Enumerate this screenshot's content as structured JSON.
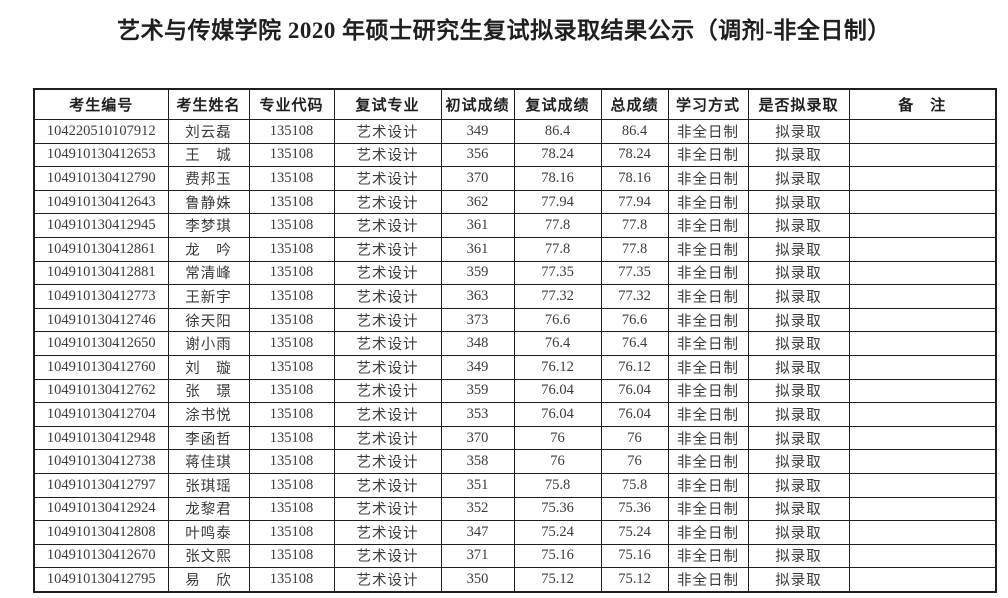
{
  "page": {
    "title": "艺术与传媒学院 2020 年硕士研究生复试拟录取结果公示（调剂-非全日制）"
  },
  "table": {
    "columns": [
      {
        "key": "candidate_id",
        "label": "考生编号"
      },
      {
        "key": "name",
        "label": "考生姓名"
      },
      {
        "key": "major_code",
        "label": "专业代码"
      },
      {
        "key": "retest_major",
        "label": "复试专业"
      },
      {
        "key": "initial_score",
        "label": "初试成绩"
      },
      {
        "key": "retest_score",
        "label": "复试成绩"
      },
      {
        "key": "total_score",
        "label": "总成绩"
      },
      {
        "key": "study_mode",
        "label": "学习方式"
      },
      {
        "key": "admission_status",
        "label": "是否拟录取"
      },
      {
        "key": "remark",
        "label": "备　注"
      }
    ],
    "rows": [
      {
        "candidate_id": "104220510107912",
        "name": "刘云磊",
        "major_code": "135108",
        "retest_major": "艺术设计",
        "initial_score": "349",
        "retest_score": "86.4",
        "total_score": "86.4",
        "study_mode": "非全日制",
        "admission_status": "拟录取",
        "remark": ""
      },
      {
        "candidate_id": "104910130412653",
        "name": "王　城",
        "major_code": "135108",
        "retest_major": "艺术设计",
        "initial_score": "356",
        "retest_score": "78.24",
        "total_score": "78.24",
        "study_mode": "非全日制",
        "admission_status": "拟录取",
        "remark": ""
      },
      {
        "candidate_id": "104910130412790",
        "name": "费邦玉",
        "major_code": "135108",
        "retest_major": "艺术设计",
        "initial_score": "370",
        "retest_score": "78.16",
        "total_score": "78.16",
        "study_mode": "非全日制",
        "admission_status": "拟录取",
        "remark": ""
      },
      {
        "candidate_id": "104910130412643",
        "name": "鲁静姝",
        "major_code": "135108",
        "retest_major": "艺术设计",
        "initial_score": "362",
        "retest_score": "77.94",
        "total_score": "77.94",
        "study_mode": "非全日制",
        "admission_status": "拟录取",
        "remark": ""
      },
      {
        "candidate_id": "104910130412945",
        "name": "李梦琪",
        "major_code": "135108",
        "retest_major": "艺术设计",
        "initial_score": "361",
        "retest_score": "77.8",
        "total_score": "77.8",
        "study_mode": "非全日制",
        "admission_status": "拟录取",
        "remark": ""
      },
      {
        "candidate_id": "104910130412861",
        "name": "龙　吟",
        "major_code": "135108",
        "retest_major": "艺术设计",
        "initial_score": "361",
        "retest_score": "77.8",
        "total_score": "77.8",
        "study_mode": "非全日制",
        "admission_status": "拟录取",
        "remark": ""
      },
      {
        "candidate_id": "104910130412881",
        "name": "常清峰",
        "major_code": "135108",
        "retest_major": "艺术设计",
        "initial_score": "359",
        "retest_score": "77.35",
        "total_score": "77.35",
        "study_mode": "非全日制",
        "admission_status": "拟录取",
        "remark": ""
      },
      {
        "candidate_id": "104910130412773",
        "name": "王新宇",
        "major_code": "135108",
        "retest_major": "艺术设计",
        "initial_score": "363",
        "retest_score": "77.32",
        "total_score": "77.32",
        "study_mode": "非全日制",
        "admission_status": "拟录取",
        "remark": ""
      },
      {
        "candidate_id": "104910130412746",
        "name": "徐天阳",
        "major_code": "135108",
        "retest_major": "艺术设计",
        "initial_score": "373",
        "retest_score": "76.6",
        "total_score": "76.6",
        "study_mode": "非全日制",
        "admission_status": "拟录取",
        "remark": ""
      },
      {
        "candidate_id": "104910130412650",
        "name": "谢小雨",
        "major_code": "135108",
        "retest_major": "艺术设计",
        "initial_score": "348",
        "retest_score": "76.4",
        "total_score": "76.4",
        "study_mode": "非全日制",
        "admission_status": "拟录取",
        "remark": ""
      },
      {
        "candidate_id": "104910130412760",
        "name": "刘　璇",
        "major_code": "135108",
        "retest_major": "艺术设计",
        "initial_score": "349",
        "retest_score": "76.12",
        "total_score": "76.12",
        "study_mode": "非全日制",
        "admission_status": "拟录取",
        "remark": ""
      },
      {
        "candidate_id": "104910130412762",
        "name": "张　璟",
        "major_code": "135108",
        "retest_major": "艺术设计",
        "initial_score": "359",
        "retest_score": "76.04",
        "total_score": "76.04",
        "study_mode": "非全日制",
        "admission_status": "拟录取",
        "remark": ""
      },
      {
        "candidate_id": "104910130412704",
        "name": "涂书悦",
        "major_code": "135108",
        "retest_major": "艺术设计",
        "initial_score": "353",
        "retest_score": "76.04",
        "total_score": "76.04",
        "study_mode": "非全日制",
        "admission_status": "拟录取",
        "remark": ""
      },
      {
        "candidate_id": "104910130412948",
        "name": "李函哲",
        "major_code": "135108",
        "retest_major": "艺术设计",
        "initial_score": "370",
        "retest_score": "76",
        "total_score": "76",
        "study_mode": "非全日制",
        "admission_status": "拟录取",
        "remark": ""
      },
      {
        "candidate_id": "104910130412738",
        "name": "蒋佳琪",
        "major_code": "135108",
        "retest_major": "艺术设计",
        "initial_score": "358",
        "retest_score": "76",
        "total_score": "76",
        "study_mode": "非全日制",
        "admission_status": "拟录取",
        "remark": ""
      },
      {
        "candidate_id": "104910130412797",
        "name": "张琪瑶",
        "major_code": "135108",
        "retest_major": "艺术设计",
        "initial_score": "351",
        "retest_score": "75.8",
        "total_score": "75.8",
        "study_mode": "非全日制",
        "admission_status": "拟录取",
        "remark": ""
      },
      {
        "candidate_id": "104910130412924",
        "name": "龙黎君",
        "major_code": "135108",
        "retest_major": "艺术设计",
        "initial_score": "352",
        "retest_score": "75.36",
        "total_score": "75.36",
        "study_mode": "非全日制",
        "admission_status": "拟录取",
        "remark": ""
      },
      {
        "candidate_id": "104910130412808",
        "name": "叶鸣泰",
        "major_code": "135108",
        "retest_major": "艺术设计",
        "initial_score": "347",
        "retest_score": "75.24",
        "total_score": "75.24",
        "study_mode": "非全日制",
        "admission_status": "拟录取",
        "remark": ""
      },
      {
        "candidate_id": "104910130412670",
        "name": "张文熙",
        "major_code": "135108",
        "retest_major": "艺术设计",
        "initial_score": "371",
        "retest_score": "75.16",
        "total_score": "75.16",
        "study_mode": "非全日制",
        "admission_status": "拟录取",
        "remark": ""
      },
      {
        "candidate_id": "104910130412795",
        "name": "易　欣",
        "major_code": "135108",
        "retest_major": "艺术设计",
        "initial_score": "350",
        "retest_score": "75.12",
        "total_score": "75.12",
        "study_mode": "非全日制",
        "admission_status": "拟录取",
        "remark": ""
      }
    ]
  }
}
